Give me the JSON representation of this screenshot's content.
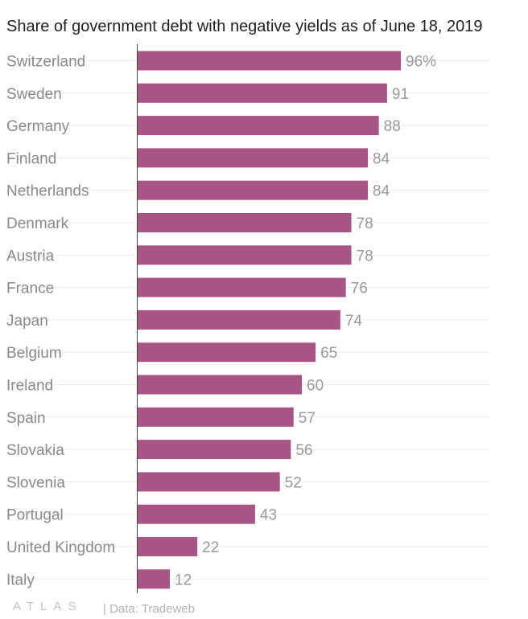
{
  "header": {
    "title": "Share of government debt with negative yields as of June 18, 2019"
  },
  "footer": {
    "logo": "ATLAS",
    "source": "| Data: Tradeweb"
  },
  "colors": {
    "bar": "#a85585",
    "gridline": "#ececec",
    "axis": "#444444"
  },
  "chart_data": {
    "type": "bar",
    "orientation": "horizontal",
    "title": "Share of government debt with negative yields as of June 18, 2019",
    "xlabel": "",
    "ylabel": "",
    "xlim": [
      0,
      100
    ],
    "unit_suffix": "%",
    "categories": [
      "Switzerland",
      "Sweden",
      "Germany",
      "Finland",
      "Netherlands",
      "Denmark",
      "Austria",
      "France",
      "Japan",
      "Belgium",
      "Ireland",
      "Spain",
      "Slovakia",
      "Slovenia",
      "Portugal",
      "United Kingdom",
      "Italy"
    ],
    "values": [
      96,
      91,
      88,
      84,
      84,
      78,
      78,
      76,
      74,
      65,
      60,
      57,
      56,
      52,
      43,
      22,
      12
    ],
    "value_labels": [
      "96%",
      "91",
      "88",
      "84",
      "84",
      "78",
      "78",
      "76",
      "74",
      "65",
      "60",
      "57",
      "56",
      "52",
      "43",
      "22",
      "12"
    ]
  }
}
